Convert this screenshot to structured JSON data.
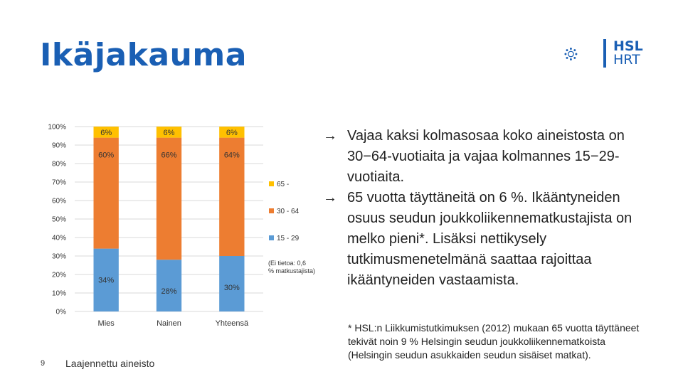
{
  "slide": {
    "title": "Ikäjakauma",
    "page_number": "9",
    "source_note": "Laajennettu aineisto",
    "logo": {
      "line1": "HSL",
      "line2": "HRT",
      "color": "#1a5fb4"
    },
    "bullets": [
      {
        "arrow": "→",
        "text": "Vajaa kaksi kolmasosaa koko aineistosta on 30−64-vuotiaita ja vajaa kolmannes 15−29-vuotiaita."
      },
      {
        "arrow": "→",
        "text": "65 vuotta täyttäneitä on 6 %. Ikääntyneiden osuus seudun joukkoliikennematkustajista on melko pieni*. Lisäksi nettikysely tutkimusmenetelmänä saattaa rajoittaa ikääntyneiden vastaamista."
      }
    ],
    "footnote": "* HSL:n Liikkumistutkimuksen (2012) mukaan 65 vuotta täyttäneet tekivät noin 9 % Helsingin seudun joukkoliikennematkoista (Helsingin seudun asukkaiden seudun sisäiset matkat)."
  },
  "chart_data": {
    "type": "bar",
    "stacked": true,
    "categories": [
      "Mies",
      "Nainen",
      "Yhteensä"
    ],
    "series": [
      {
        "name": "15 - 29",
        "values": [
          34,
          28,
          30
        ],
        "labels": [
          "34%",
          "28%",
          "30%"
        ],
        "color": "#5b9bd5"
      },
      {
        "name": "30 - 64",
        "values": [
          60,
          66,
          64
        ],
        "labels": [
          "60%",
          "66%",
          "64%"
        ],
        "color": "#ed7d31"
      },
      {
        "name": "65 -",
        "values": [
          6,
          6,
          6
        ],
        "labels": [
          "6%",
          "6%",
          "6%"
        ],
        "color": "#ffc000"
      }
    ],
    "ylim": [
      0,
      100
    ],
    "yticks": [
      "0%",
      "10%",
      "20%",
      "30%",
      "40%",
      "50%",
      "60%",
      "70%",
      "80%",
      "90%",
      "100%"
    ],
    "grid": true,
    "legend_position": "right",
    "legend_note": "(Ei tietoa: 0,6 % matkustajista)"
  }
}
